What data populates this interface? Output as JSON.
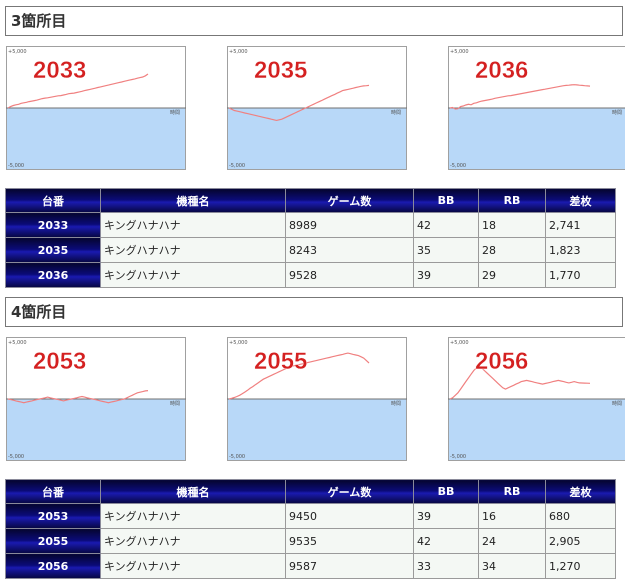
{
  "sections": [
    {
      "title": "3箇所目",
      "charts": [
        {
          "label": "2033",
          "y_top": "+5,000",
          "y_bottom": "-5,000",
          "x_axis": "時間",
          "series": [
            0,
            120,
            200,
            260,
            300,
            380,
            420,
            460,
            520,
            560,
            600,
            640,
            700,
            760,
            800,
            820,
            860,
            900,
            940,
            980,
            1000,
            1050,
            1100,
            1150,
            1180,
            1200,
            1250,
            1300,
            1350,
            1400,
            1450,
            1500,
            1550,
            1600,
            1650,
            1700,
            1750,
            1800,
            1850,
            1900,
            1950,
            2000,
            2050,
            2100,
            2150,
            2200,
            2250,
            2300,
            2350,
            2400,
            2450,
            2500,
            2600,
            2741
          ]
        },
        {
          "label": "2035",
          "y_top": "+5,000",
          "y_bottom": "-5,000",
          "x_axis": "時間",
          "series": [
            0,
            -100,
            -200,
            -250,
            -300,
            -350,
            -400,
            -450,
            -500,
            -550,
            -600,
            -650,
            -700,
            -750,
            -800,
            -850,
            -900,
            -950,
            -1000,
            -950,
            -900,
            -800,
            -700,
            -600,
            -500,
            -400,
            -300,
            -200,
            -100,
            0,
            100,
            200,
            300,
            400,
            500,
            600,
            700,
            800,
            900,
            1000,
            1100,
            1200,
            1300,
            1400,
            1450,
            1500,
            1550,
            1600,
            1650,
            1700,
            1750,
            1780,
            1800,
            1823
          ]
        },
        {
          "label": "2036",
          "y_top": "+5,000",
          "y_bottom": "-5,000",
          "x_axis": "時間",
          "series": [
            0,
            40,
            -80,
            -60,
            120,
            160,
            240,
            300,
            260,
            380,
            420,
            500,
            560,
            600,
            640,
            680,
            720,
            780,
            820,
            860,
            900,
            940,
            980,
            1000,
            1040,
            1080,
            1120,
            1160,
            1200,
            1240,
            1280,
            1320,
            1360,
            1400,
            1440,
            1480,
            1520,
            1560,
            1600,
            1640,
            1680,
            1720,
            1760,
            1800,
            1820,
            1840,
            1860,
            1880,
            1860,
            1840,
            1820,
            1800,
            1780,
            1770
          ]
        }
      ],
      "table": {
        "headers": [
          "台番",
          "機種名",
          "ゲーム数",
          "BB",
          "RB",
          "差枚"
        ],
        "rows": [
          [
            "2033",
            "キングハナハナ",
            "8989",
            "42",
            "18",
            "2,741"
          ],
          [
            "2035",
            "キングハナハナ",
            "8243",
            "35",
            "28",
            "1,823"
          ],
          [
            "2036",
            "キングハナハナ",
            "9528",
            "39",
            "29",
            "1,770"
          ]
        ]
      }
    },
    {
      "title": "4箇所目",
      "charts": [
        {
          "label": "2053",
          "y_top": "+5,000",
          "y_bottom": "-5,000",
          "x_axis": "時間",
          "series": [
            0,
            -50,
            -100,
            -150,
            -200,
            -250,
            -300,
            -250,
            -200,
            -150,
            -100,
            -50,
            0,
            50,
            100,
            150,
            100,
            50,
            0,
            -50,
            -100,
            -150,
            -100,
            -50,
            0,
            50,
            100,
            150,
            200,
            150,
            100,
            50,
            0,
            -50,
            -100,
            -150,
            -200,
            -250,
            -300,
            -250,
            -200,
            -150,
            -100,
            -50,
            0,
            100,
            200,
            300,
            400,
            500,
            550,
            600,
            650,
            680
          ]
        },
        {
          "label": "2055",
          "y_top": "+5,000",
          "y_bottom": "-5,000",
          "x_axis": "時間",
          "series": [
            0,
            60,
            120,
            200,
            300,
            420,
            560,
            700,
            860,
            1000,
            1150,
            1300,
            1450,
            1600,
            1700,
            1800,
            1900,
            2000,
            2100,
            2200,
            2300,
            2400,
            2500,
            2600,
            2650,
            2700,
            2750,
            2800,
            2850,
            2900,
            2950,
            3000,
            3050,
            3100,
            3150,
            3200,
            3250,
            3300,
            3350,
            3400,
            3450,
            3500,
            3550,
            3600,
            3650,
            3700,
            3650,
            3600,
            3550,
            3500,
            3400,
            3300,
            3100,
            2905
          ]
        },
        {
          "label": "2056",
          "y_top": "+5,000",
          "y_bottom": "-5,000",
          "x_axis": "時間",
          "series": [
            0,
            100,
            300,
            500,
            800,
            1100,
            1400,
            1700,
            2000,
            2300,
            2500,
            2600,
            2500,
            2300,
            2100,
            1900,
            1700,
            1500,
            1300,
            1100,
            900,
            800,
            900,
            1000,
            1100,
            1200,
            1300,
            1400,
            1450,
            1500,
            1450,
            1400,
            1350,
            1300,
            1250,
            1200,
            1250,
            1300,
            1350,
            1400,
            1450,
            1500,
            1450,
            1400,
            1350,
            1300,
            1350,
            1400,
            1350,
            1300,
            1290,
            1280,
            1275,
            1270
          ]
        }
      ],
      "table": {
        "headers": [
          "台番",
          "機種名",
          "ゲーム数",
          "BB",
          "RB",
          "差枚"
        ],
        "rows": [
          [
            "2053",
            "キングハナハナ",
            "9450",
            "39",
            "16",
            "680"
          ],
          [
            "2055",
            "キングハナハナ",
            "9535",
            "42",
            "24",
            "2,905"
          ],
          [
            "2056",
            "キングハナハナ",
            "9587",
            "33",
            "34",
            "1,270"
          ]
        ]
      }
    }
  ]
}
